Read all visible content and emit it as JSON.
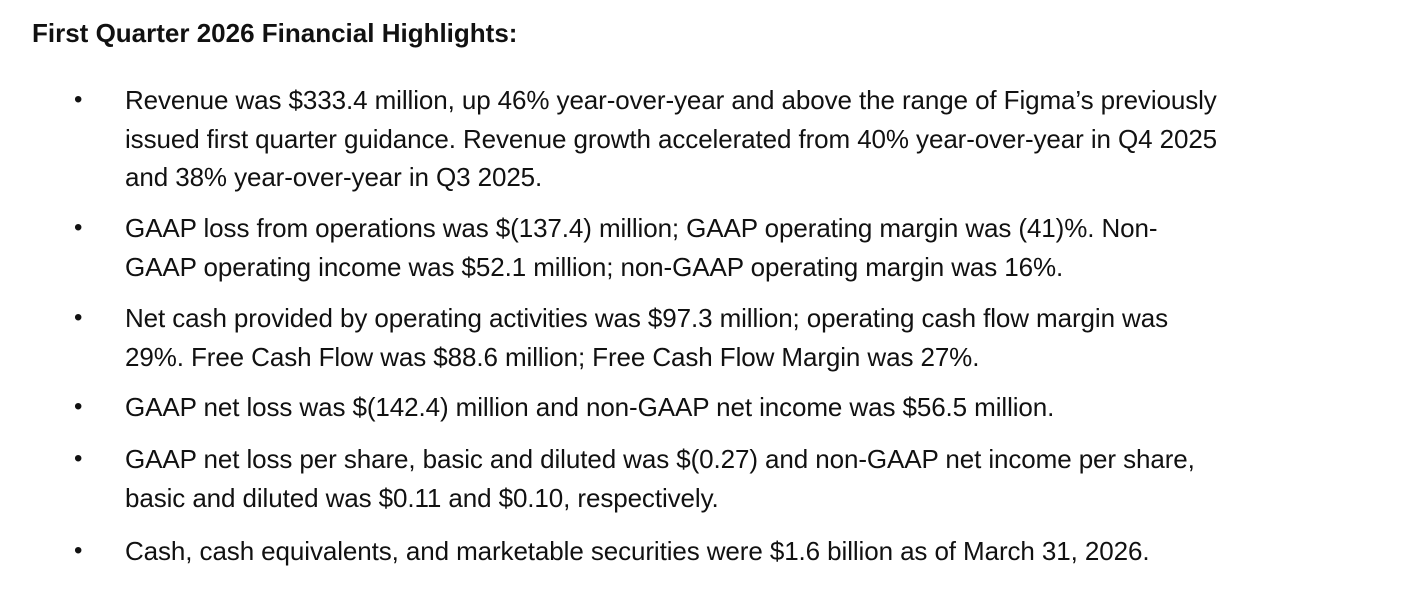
{
  "document": {
    "heading": "First Quarter 2026 Financial Highlights:",
    "bullet_glyph": "•",
    "items": [
      {
        "lines": [
          "Revenue was $333.4 million, up 46% year-over-year and above the range of Figma’s previously",
          "issued first quarter guidance. Revenue growth accelerated from 40% year-over-year in Q4 2025",
          "and 38% year-over-year in Q3 2025."
        ]
      },
      {
        "lines": [
          "GAAP loss from operations was $(137.4) million; GAAP operating margin was (41)%. Non-",
          "GAAP operating income was $52.1 million; non-GAAP operating margin was 16%."
        ]
      },
      {
        "lines": [
          "Net cash provided by operating activities was $97.3 million; operating cash flow margin was",
          "29%. Free Cash Flow was $88.6 million; Free Cash Flow Margin was 27%."
        ]
      },
      {
        "lines": [
          "GAAP net loss was $(142.4) million and non-GAAP net income was $56.5 million."
        ]
      },
      {
        "lines": [
          "GAAP net loss per share, basic and diluted was $(0.27) and non-GAAP net income per share,",
          "basic and diluted was $0.11 and $0.10, respectively."
        ]
      },
      {
        "lines": [
          "Cash, cash equivalents, and marketable securities were $1.6 billion as of March 31, 2026."
        ]
      }
    ]
  }
}
